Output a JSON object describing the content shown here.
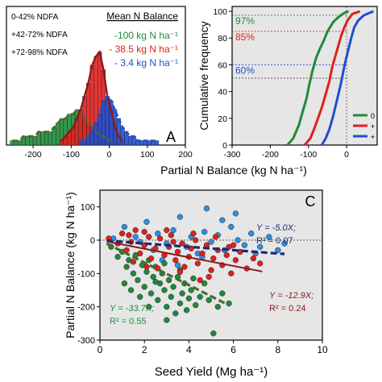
{
  "colors": {
    "low": "#1f8a3a",
    "mid": "#e0201e",
    "high": "#1f4fd0",
    "mid_fit": "#8b1a1a",
    "high_fit": "#1a2a7a",
    "low_fit": "#4a6a2a",
    "panel_bg": "#e6e6e6",
    "scatter_high": "#2f8fe0"
  },
  "shared_xlabel_top": "Partial N Balance (kg N ha⁻¹)",
  "chart_data": [
    {
      "id": "A",
      "type": "bar",
      "panel_letter": "A",
      "xlim": [
        -270,
        200
      ],
      "x_ticks": [
        -200,
        -100,
        0,
        100,
        200
      ],
      "legend": {
        "ndfa_labels": [
          "0-42% NDFA",
          "+42-72% NDFA",
          "+72-98% NDFA"
        ],
        "balance_header": "Mean N Balance",
        "balance_entries": [
          "-100 kg N ha⁻¹",
          "- 38.5 kg N ha⁻¹",
          "- 3.4 kg N ha⁻¹"
        ]
      },
      "bin_width": 10,
      "series": [
        {
          "key": "low",
          "bins": [
            -260,
            -250,
            -240,
            -230,
            -220,
            -210,
            -200,
            -190,
            -180,
            -170,
            -160,
            -150,
            -140,
            -130,
            -120,
            -110,
            -100,
            -90,
            -80,
            -70,
            -60,
            -50,
            -40,
            -30,
            -20,
            -10,
            0
          ],
          "counts": [
            1,
            1,
            1,
            2,
            2,
            2,
            2,
            3,
            3,
            3,
            3,
            4,
            5,
            6,
            6,
            7,
            7,
            8,
            7,
            6,
            5,
            4,
            3,
            2,
            2,
            1,
            1
          ]
        },
        {
          "key": "mid",
          "bins": [
            -130,
            -120,
            -110,
            -100,
            -90,
            -80,
            -70,
            -60,
            -50,
            -40,
            -30,
            -20,
            -10,
            0,
            10,
            20,
            30
          ],
          "counts": [
            1,
            2,
            3,
            4,
            6,
            8,
            11,
            14,
            18,
            20,
            21,
            17,
            11,
            8,
            4,
            2,
            1
          ]
        },
        {
          "key": "high",
          "bins": [
            -80,
            -70,
            -60,
            -50,
            -40,
            -30,
            -20,
            -10,
            0,
            10,
            20,
            30,
            40,
            50,
            60,
            70,
            80,
            90,
            100,
            110,
            120
          ],
          "counts": [
            1,
            1,
            2,
            3,
            5,
            7,
            10,
            11,
            10,
            8,
            6,
            4,
            3,
            2,
            2,
            1,
            1,
            1,
            1,
            1,
            1
          ]
        }
      ]
    },
    {
      "id": "B",
      "type": "line",
      "xlim": [
        -300,
        80
      ],
      "ylim": [
        0,
        100
      ],
      "x_ticks": [
        -300,
        -200,
        -100,
        0
      ],
      "y_ticks": [
        0,
        20,
        40,
        60,
        80,
        100
      ],
      "ylabel": "Cumulative frequency",
      "reference_lines": [
        {
          "y": 97,
          "label": "97%",
          "key": "low"
        },
        {
          "y": 85,
          "label": "85%",
          "key": "mid"
        },
        {
          "y": 60,
          "label": "60%",
          "key": "high"
        },
        {
          "y": 50,
          "label": "",
          "key": "grey"
        }
      ],
      "legend_labels": [
        "0",
        "+",
        "+"
      ],
      "series": [
        {
          "key": "low",
          "x": [
            -155,
            -140,
            -125,
            -115,
            -105,
            -98,
            -90,
            -80,
            -70,
            -60,
            -50,
            -35,
            -20,
            -5,
            5
          ],
          "y": [
            0,
            5,
            15,
            25,
            35,
            45,
            55,
            65,
            72,
            78,
            85,
            92,
            96,
            99,
            100
          ]
        },
        {
          "key": "mid",
          "x": [
            -110,
            -95,
            -85,
            -75,
            -65,
            -55,
            -45,
            -38,
            -30,
            -22,
            -14,
            -6,
            2,
            15,
            35
          ],
          "y": [
            0,
            5,
            12,
            20,
            28,
            38,
            48,
            58,
            66,
            74,
            82,
            88,
            93,
            98,
            100
          ]
        },
        {
          "key": "high",
          "x": [
            -65,
            -55,
            -45,
            -35,
            -25,
            -15,
            -8,
            -2,
            5,
            12,
            20,
            30,
            45,
            70
          ],
          "y": [
            0,
            5,
            12,
            22,
            34,
            46,
            56,
            64,
            72,
            80,
            88,
            93,
            97,
            100
          ]
        }
      ]
    },
    {
      "id": "C",
      "type": "scatter",
      "panel_letter": "C",
      "xlim": [
        0,
        10
      ],
      "ylim": [
        -300,
        150
      ],
      "x_ticks": [
        0,
        2,
        4,
        6,
        8,
        10
      ],
      "y_ticks": [
        -300,
        -200,
        -100,
        0,
        100
      ],
      "xlabel": "Seed Yield (Mg ha⁻¹)",
      "ylabel": "Partial N Balance (kg N ha⁻¹)",
      "zero_line": true,
      "fits": [
        {
          "key": "high",
          "slope": -5.0,
          "x_range": [
            0.3,
            8.3
          ],
          "eq": "Y = -5.0X;",
          "r2": "R² = 0.07"
        },
        {
          "key": "mid",
          "slope": -12.9,
          "x_range": [
            0.3,
            7.3
          ],
          "eq": "Y = -12.9X;",
          "r2": "R² = 0.24"
        },
        {
          "key": "low",
          "slope": -33.7,
          "x_range": [
            0.3,
            5.6
          ],
          "eq": "Y = -33.7X;",
          "r2": "R² = 0.55"
        }
      ],
      "series": [
        {
          "key": "high",
          "points": [
            [
              1.1,
              40
            ],
            [
              1.6,
              10
            ],
            [
              2.1,
              55
            ],
            [
              2.6,
              20
            ],
            [
              3.0,
              -10
            ],
            [
              3.3,
              30
            ],
            [
              3.6,
              70
            ],
            [
              3.9,
              -20
            ],
            [
              4.1,
              10
            ],
            [
              4.4,
              -40
            ],
            [
              4.7,
              25
            ],
            [
              5.0,
              -5
            ],
            [
              5.3,
              15
            ],
            [
              5.6,
              -30
            ],
            [
              5.9,
              40
            ],
            [
              6.2,
              0
            ],
            [
              6.5,
              -15
            ],
            [
              6.8,
              20
            ],
            [
              7.2,
              -20
            ],
            [
              7.6,
              10
            ],
            [
              8.0,
              -30
            ],
            [
              8.3,
              -10
            ],
            [
              2.8,
              -60
            ],
            [
              3.5,
              -75
            ],
            [
              4.6,
              -50
            ],
            [
              5.5,
              60
            ],
            [
              6.1,
              80
            ],
            [
              1.8,
              -5
            ],
            [
              2.4,
              -30
            ],
            [
              4.8,
              95
            ],
            [
              0.6,
              5
            ],
            [
              7.0,
              -40
            ]
          ]
        },
        {
          "key": "mid",
          "points": [
            [
              0.4,
              5
            ],
            [
              0.8,
              -10
            ],
            [
              1.0,
              20
            ],
            [
              1.2,
              -30
            ],
            [
              1.4,
              -5
            ],
            [
              1.6,
              30
            ],
            [
              1.8,
              -40
            ],
            [
              2.0,
              -15
            ],
            [
              2.2,
              10
            ],
            [
              2.3,
              -55
            ],
            [
              2.5,
              -25
            ],
            [
              2.7,
              5
            ],
            [
              2.9,
              -45
            ],
            [
              3.1,
              -20
            ],
            [
              3.2,
              15
            ],
            [
              3.4,
              -60
            ],
            [
              3.5,
              -35
            ],
            [
              3.7,
              -10
            ],
            [
              3.8,
              -80
            ],
            [
              4.0,
              -50
            ],
            [
              4.1,
              -25
            ],
            [
              4.3,
              0
            ],
            [
              4.4,
              -70
            ],
            [
              4.6,
              -40
            ],
            [
              4.8,
              -15
            ],
            [
              5.0,
              -90
            ],
            [
              5.1,
              -55
            ],
            [
              5.3,
              -30
            ],
            [
              5.5,
              -75
            ],
            [
              5.7,
              -45
            ],
            [
              5.9,
              -100
            ],
            [
              6.1,
              -60
            ],
            [
              6.3,
              -35
            ],
            [
              6.6,
              -85
            ],
            [
              6.9,
              -55
            ],
            [
              7.2,
              -70
            ],
            [
              2.0,
              25
            ],
            [
              3.0,
              30
            ],
            [
              4.2,
              20
            ],
            [
              5.2,
              10
            ],
            [
              1.5,
              -65
            ],
            [
              2.6,
              -85
            ],
            [
              3.6,
              -95
            ],
            [
              4.9,
              -110
            ],
            [
              6.0,
              -15
            ],
            [
              1.3,
              15
            ],
            [
              3.3,
              -5
            ],
            [
              4.5,
              -120
            ],
            [
              5.8,
              -20
            ],
            [
              2.1,
              -80
            ]
          ]
        },
        {
          "key": "low",
          "points": [
            [
              0.5,
              -20
            ],
            [
              0.8,
              -50
            ],
            [
              1.0,
              -35
            ],
            [
              1.2,
              -80
            ],
            [
              1.3,
              -60
            ],
            [
              1.5,
              -100
            ],
            [
              1.6,
              -45
            ],
            [
              1.7,
              -120
            ],
            [
              1.9,
              -75
            ],
            [
              2.0,
              -140
            ],
            [
              2.1,
              -95
            ],
            [
              2.2,
              -60
            ],
            [
              2.3,
              -160
            ],
            [
              2.4,
              -110
            ],
            [
              2.5,
              -80
            ],
            [
              2.6,
              -180
            ],
            [
              2.7,
              -130
            ],
            [
              2.8,
              -100
            ],
            [
              2.9,
              -150
            ],
            [
              3.0,
              -200
            ],
            [
              3.1,
              -120
            ],
            [
              3.2,
              -170
            ],
            [
              3.3,
              -140
            ],
            [
              3.4,
              -220
            ],
            [
              3.5,
              -110
            ],
            [
              3.6,
              -190
            ],
            [
              3.7,
              -160
            ],
            [
              3.8,
              -130
            ],
            [
              3.9,
              -210
            ],
            [
              4.0,
              -175
            ],
            [
              4.1,
              -150
            ],
            [
              4.3,
              -195
            ],
            [
              4.5,
              -170
            ],
            [
              4.7,
              -130
            ],
            [
              4.9,
              -180
            ],
            [
              5.1,
              -280
            ],
            [
              5.3,
              -200
            ],
            [
              5.5,
              -160
            ],
            [
              5.8,
              -190
            ],
            [
              1.1,
              -130
            ],
            [
              1.8,
              -170
            ],
            [
              2.2,
              -200
            ],
            [
              3.0,
              -240
            ],
            [
              2.5,
              -125
            ],
            [
              3.6,
              -90
            ],
            [
              4.2,
              -115
            ],
            [
              1.4,
              -150
            ],
            [
              2.9,
              -70
            ]
          ]
        }
      ]
    }
  ]
}
